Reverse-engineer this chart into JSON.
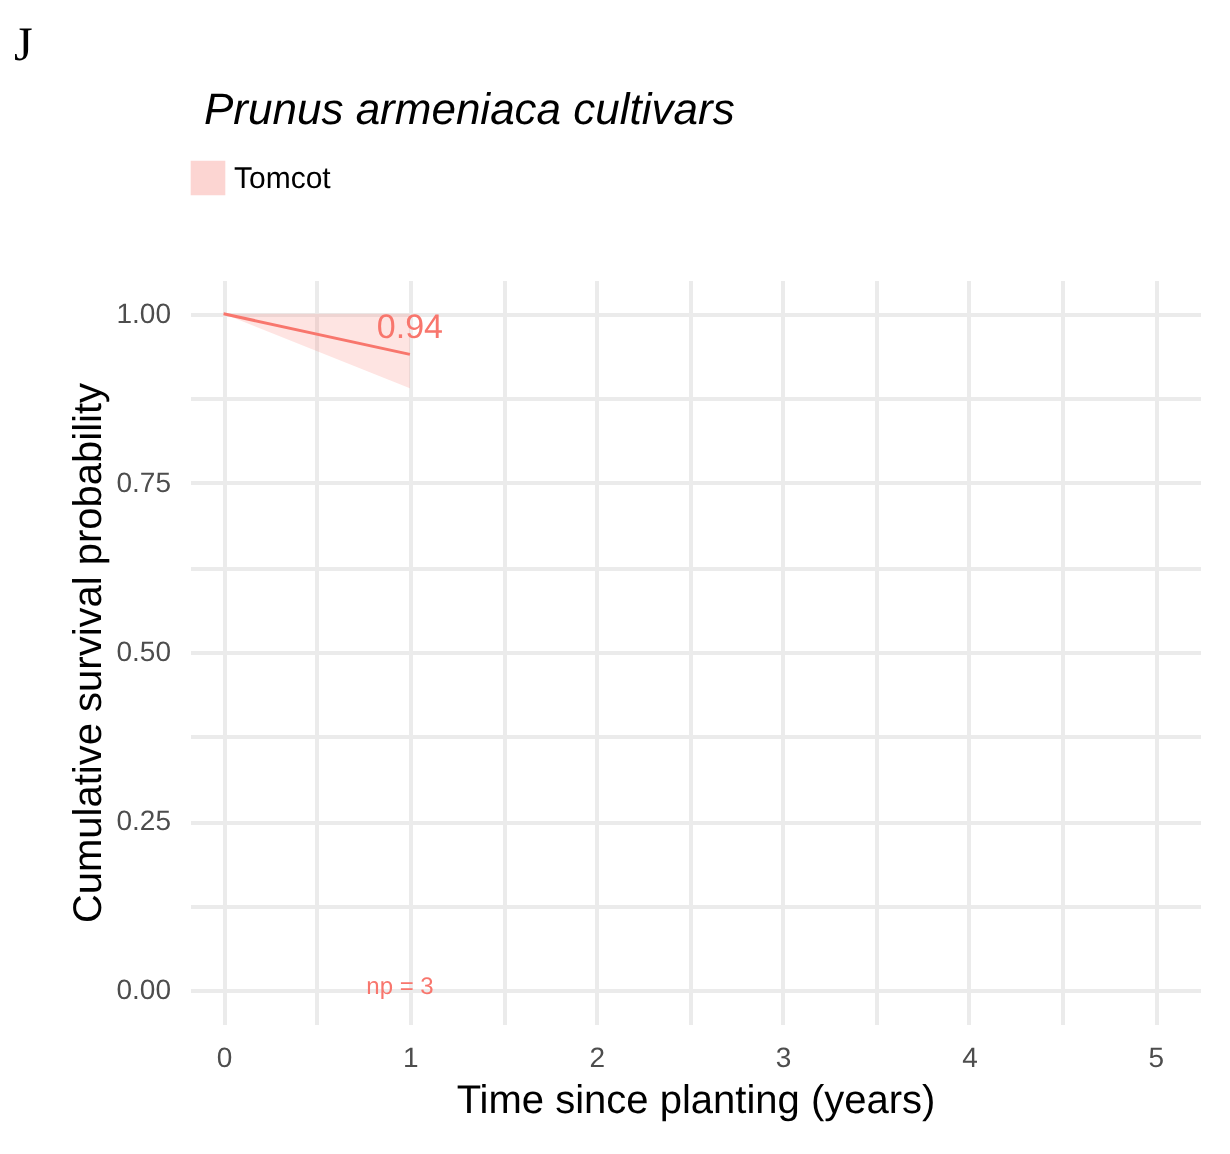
{
  "chart_data": {
    "type": "line",
    "title": "Prunus armeniaca cultivars",
    "xlabel": "Time since planting (years)",
    "ylabel": "Cumulative survival probability",
    "series": [
      {
        "name": "Tomcot",
        "color": "#f8766d",
        "x": [
          0,
          1
        ],
        "values": [
          1.0,
          0.94
        ],
        "lower": [
          1.0,
          0.89
        ],
        "upper": [
          1.0,
          1.0
        ]
      }
    ],
    "xlim": [
      -0.18,
      5.24
    ],
    "xticks": [
      0,
      {
        "value": 0.5,
        "label": null
      },
      1,
      {
        "value": 1.5,
        "label": null
      },
      2,
      {
        "value": 2.5,
        "label": null
      },
      3,
      {
        "value": 3.5,
        "label": null
      },
      4,
      {
        "value": 4.5,
        "label": null
      },
      5
    ],
    "ylim": [
      -0.05,
      1.05
    ],
    "yticks": [
      {
        "value": 0,
        "label": "0.00"
      },
      {
        "value": 0.125,
        "label": null
      },
      {
        "value": 0.25,
        "label": "0.25"
      },
      {
        "value": 0.375,
        "label": null
      },
      {
        "value": 0.5,
        "label": "0.50"
      },
      {
        "value": 0.625,
        "label": null
      },
      {
        "value": 0.75,
        "label": "0.75"
      },
      {
        "value": 0.875,
        "label": null
      },
      {
        "value": 1,
        "label": "1.00"
      }
    ],
    "annotations": [
      "J",
      {
        "text": "0.94",
        "x": 1,
        "y": 0.94
      },
      "np =  3"
    ],
    "grid": true,
    "legend": "top left",
    "marker": "none",
    "line_style": "solid"
  }
}
